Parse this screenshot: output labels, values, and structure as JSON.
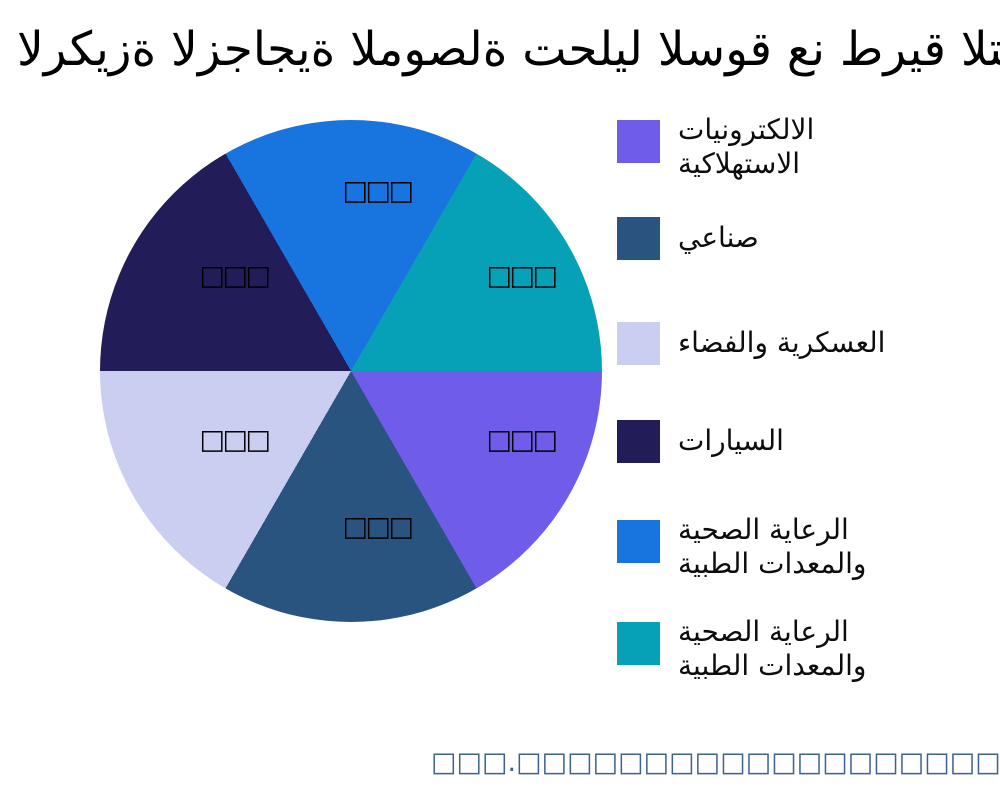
{
  "title": {
    "text": "الركيزة الزجاجية الموصلة تحليل السوق عن طريق التطبيق"
  },
  "legend": {
    "items": [
      {
        "label": "الالكترونيات الاستهلاكية",
        "lines": [
          "الالكترونيات",
          "الاستهلاكية"
        ],
        "color": "#6F5CE8"
      },
      {
        "label": "صناعي",
        "lines": [
          "صناعي",
          ""
        ],
        "color": "#2A5480"
      },
      {
        "label": "العسكرية والفضاء",
        "lines": [
          "العسكرية والفضاء",
          ""
        ],
        "color": "#CACFF2"
      },
      {
        "label": "السيارات",
        "lines": [
          "السيارات",
          ""
        ],
        "color": "#221D58"
      },
      {
        "label": "الرعاية الصحية والمعدات الطبية",
        "lines": [
          "الرعاية الصحية",
          "والمعدات الطبية"
        ],
        "color": "#1875E0"
      },
      {
        "label": "الرعاية الصحية والمعدات الطبية",
        "lines": [
          "الرعاية الصحية",
          "والمعدات الطبية"
        ],
        "color": "#06A1B6"
      }
    ]
  },
  "chart_data": {
    "type": "pie",
    "title": "الركيزة الزجاجية الموصلة تحليل السوق عن طريق التطبيق",
    "categories": [
      "الالكترونيات الاستهلاكية",
      "صناعي",
      "العسكرية والفضاء",
      "السيارات",
      "الرعاية الصحية والمعدات الطبية",
      "الرعاية الصحية والمعدات الطبية"
    ],
    "values": [
      16.67,
      16.67,
      16.67,
      16.67,
      16.67,
      16.67
    ],
    "colors": [
      "#6F5CE8",
      "#2A5480",
      "#CACFF2",
      "#221D58",
      "#1875E0",
      "#06A1B6"
    ],
    "legend_position": "right",
    "slice_text_note": "each slice carries an unrenderable 3-glyph label shown as tofu boxes",
    "slice_labels": [
      "□□□",
      "□□□",
      "□□□",
      "□□□",
      "□□□",
      "□□□"
    ],
    "pie_start_deg": -30,
    "conic_slices": [
      {
        "name": "الرعاية الصحية والمعدات الطبية",
        "color": "#1875E0",
        "start": 0,
        "end": 60
      },
      {
        "name": "الرعاية الصحية والمعدات الطبية",
        "color": "#06A1B6",
        "start": 60,
        "end": 120
      },
      {
        "name": "الالكترونيات الاستهلاكية",
        "color": "#6F5CE8",
        "start": 120,
        "end": 180
      },
      {
        "name": "صناعي",
        "color": "#2A5480",
        "start": 180,
        "end": 240
      },
      {
        "name": "العسكرية والفضاء",
        "color": "#CACFF2",
        "start": 240,
        "end": 300
      },
      {
        "name": "السيارات",
        "color": "#221D58",
        "start": 300,
        "end": 360
      }
    ]
  },
  "watermark": {
    "text": "□□□.□□□□□□□□□□□□□□□□□□□.□□□",
    "color": "#3E628F"
  }
}
